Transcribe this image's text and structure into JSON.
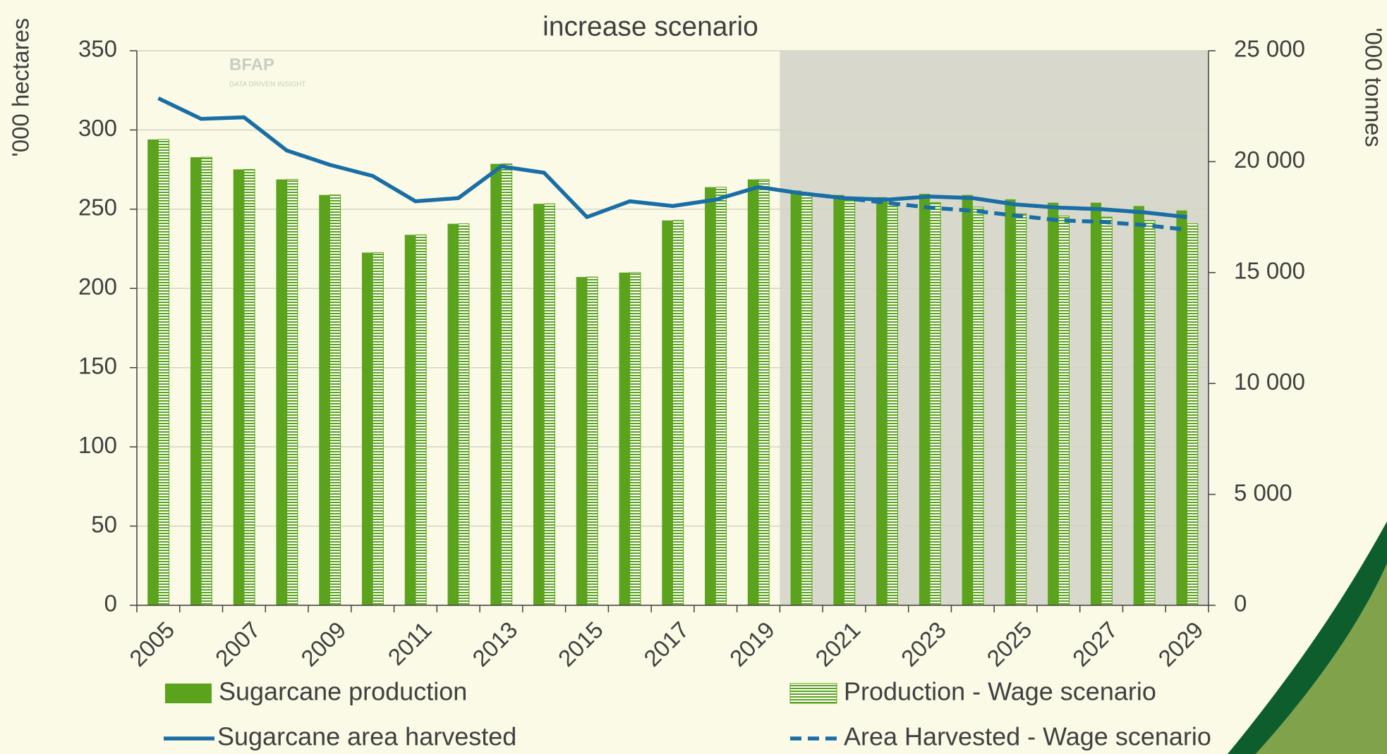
{
  "chart_data": {
    "type": "bar_line",
    "title": "increase scenario",
    "logo": {
      "name": "BFAP",
      "tagline": "DATA DRIVEN INSIGHT"
    },
    "ylabel": "'000 hectares",
    "y2label": "'000 tonnes",
    "categories": [
      "2005",
      null,
      "2007",
      null,
      "2009",
      null,
      "2011",
      null,
      "2013",
      null,
      "2015",
      null,
      "2017",
      null,
      "2019",
      null,
      "2021",
      null,
      "2023",
      null,
      "2025",
      null,
      "2027",
      null,
      "2029"
    ],
    "ylim": [
      0,
      350
    ],
    "yticks": [
      0,
      50,
      100,
      150,
      200,
      250,
      300,
      350
    ],
    "y2lim": [
      0,
      25000
    ],
    "y2ticks": [
      0,
      {
        "value": 5000,
        "label": "5 000"
      },
      {
        "value": 10000,
        "label": "10 000"
      },
      {
        "value": 15000,
        "label": "15 000"
      },
      {
        "value": 20000,
        "label": "20 000"
      },
      {
        "value": 25000,
        "label": "25 000"
      }
    ],
    "series": [
      {
        "name": "Sugarcane production",
        "type": "bar",
        "style": "solid",
        "axis": "y2",
        "color": "#5ba31c",
        "values": [
          21000,
          20200,
          19650,
          19200,
          18500,
          15900,
          16700,
          17200,
          19900,
          18100,
          14800,
          15000,
          17350,
          18850,
          19200,
          18700,
          18500,
          18400,
          18550,
          18500,
          18300,
          18150,
          18150,
          18000,
          17800
        ]
      },
      {
        "name": "Production - Wage scenario",
        "type": "bar",
        "style": "hatched",
        "axis": "y2",
        "color": "#5ba31c",
        "values": [
          21000,
          20200,
          19650,
          19200,
          18500,
          15900,
          16700,
          17200,
          19900,
          18100,
          14800,
          15000,
          17350,
          18850,
          19200,
          18550,
          18300,
          18150,
          18150,
          17950,
          17650,
          17550,
          17500,
          17350,
          17200
        ]
      },
      {
        "name": "Sugarcane area harvested",
        "type": "line",
        "style": "solid",
        "color": "#1a6ea6",
        "values": [
          320,
          307,
          308,
          287,
          278,
          271,
          255,
          257,
          277,
          273,
          245,
          255,
          252,
          256,
          264,
          260,
          257,
          256,
          258,
          257,
          253,
          251,
          250,
          248,
          245
        ]
      },
      {
        "name": "Area Harvested - Wage scenario",
        "type": "line",
        "style": "dashed",
        "color": "#1a6ea6",
        "values": [
          null,
          null,
          null,
          null,
          null,
          null,
          null,
          null,
          null,
          null,
          null,
          null,
          null,
          null,
          null,
          260,
          257,
          254,
          251,
          249,
          246,
          243,
          242,
          240,
          237
        ]
      }
    ]
  }
}
